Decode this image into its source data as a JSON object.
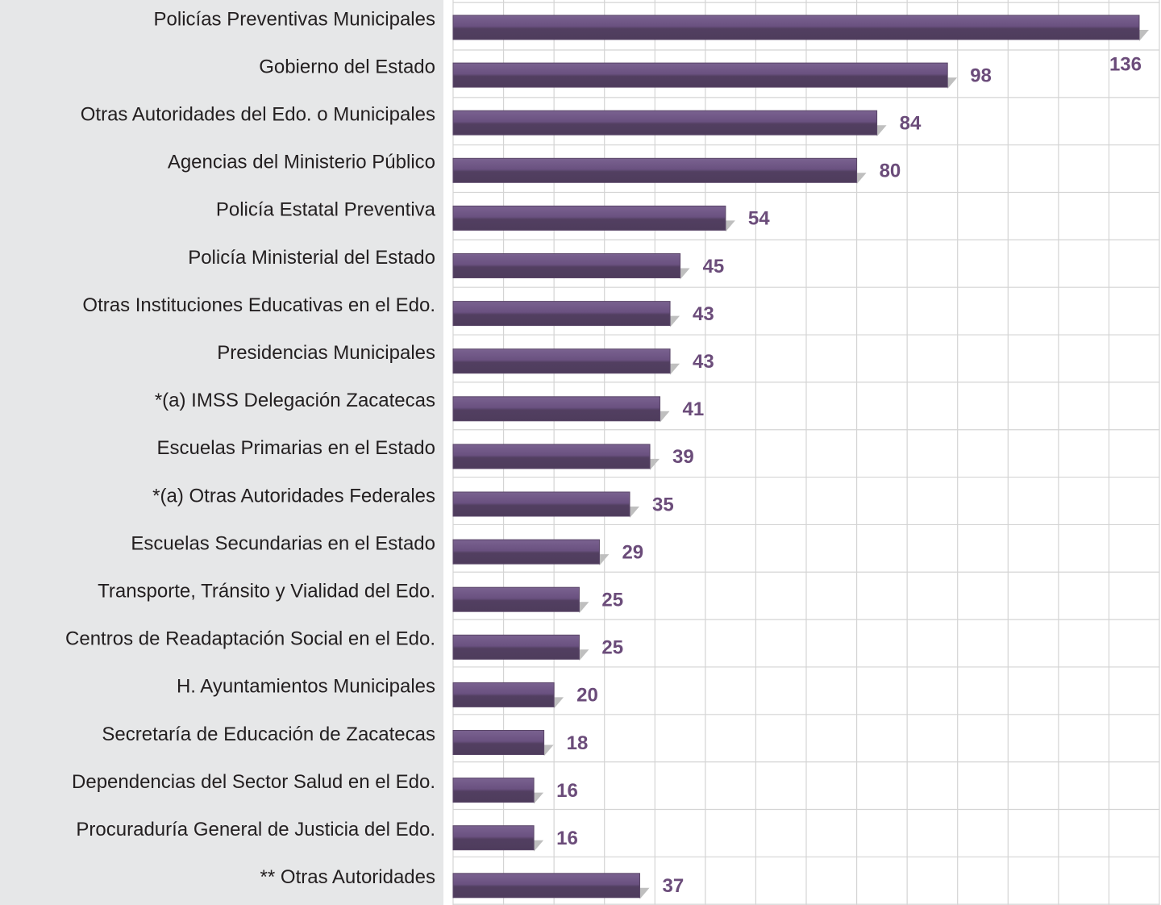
{
  "chart_data": {
    "type": "bar",
    "orientation": "horizontal",
    "categories": [
      "Policías Preventivas Municipales",
      "Gobierno del Estado",
      "Otras Autoridades del Edo. o Municipales",
      "Agencias del Ministerio Público",
      "Policía Estatal Preventiva",
      "Policía Ministerial del Estado",
      "Otras Instituciones Educativas en el Edo.",
      "Presidencias Municipales",
      "*(a) IMSS Delegación Zacatecas",
      "Escuelas Primarias en el Estado",
      "*(a) Otras Autoridades Federales",
      "Escuelas Secundarias en el Estado",
      "Transporte, Tránsito y Vialidad del Edo.",
      "Centros de Readaptación Social en el Edo.",
      "H. Ayuntamientos Municipales",
      "Secretaría de Educación de Zacatecas",
      "Dependencias del Sector Salud en el Edo.",
      "Procuraduría General de Justicia del Edo.",
      "** Otras Autoridades"
    ],
    "values": [
      136,
      98,
      84,
      80,
      54,
      45,
      43,
      43,
      41,
      39,
      35,
      29,
      25,
      25,
      20,
      18,
      16,
      16,
      37
    ],
    "color": "#5a4668",
    "xlim": [
      0,
      140
    ],
    "xticks": [
      0,
      10,
      20,
      30,
      40,
      50,
      60,
      70,
      80,
      90,
      100,
      110,
      120,
      130,
      140
    ],
    "grid": true
  }
}
